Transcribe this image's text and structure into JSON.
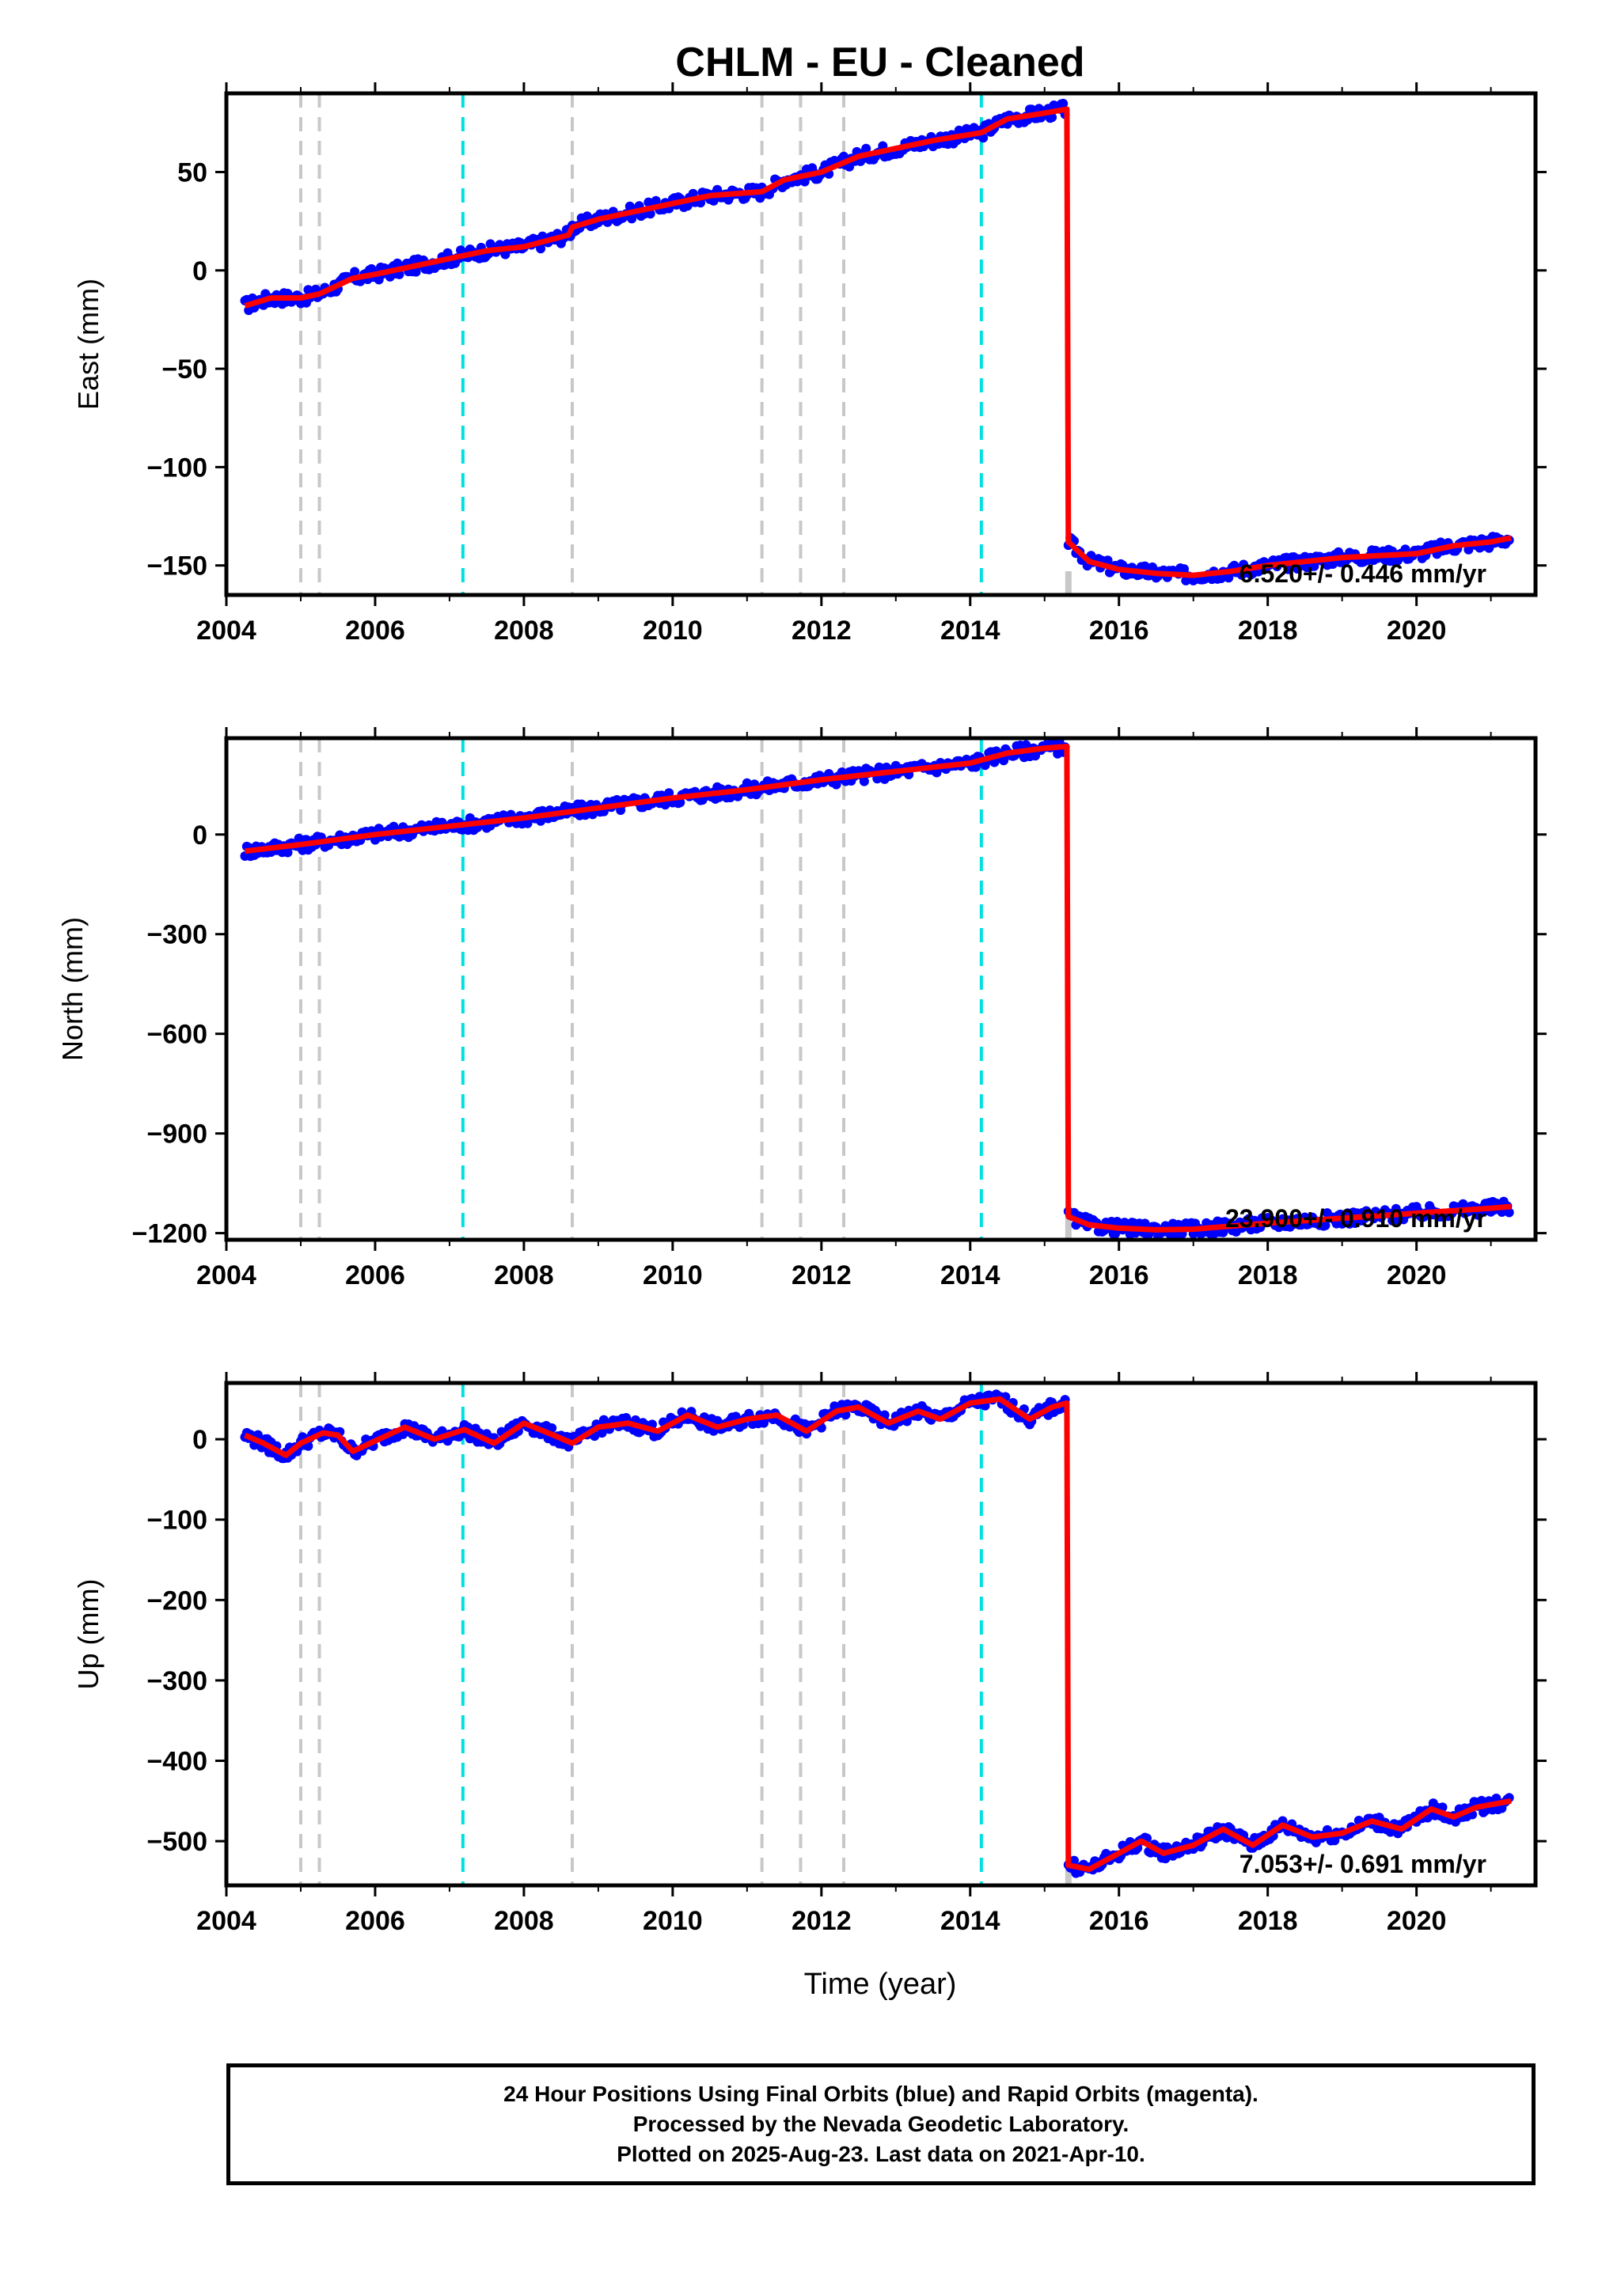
{
  "chart_data": {
    "type": "scatter",
    "title": "CHLM  - EU - Cleaned",
    "xlabel": "Time (year)",
    "xlim": [
      2004.0,
      2021.6
    ],
    "x_ticks": [
      2004,
      2006,
      2008,
      2010,
      2012,
      2014,
      2016,
      2018,
      2020
    ],
    "x_tick_labels": [
      "2004",
      "2006",
      "2008",
      "2010",
      "2012",
      "2014",
      "2016",
      "2018",
      "2020"
    ],
    "equipment_change_dates": [
      2005.0,
      2005.25,
      2008.65,
      2011.2,
      2011.72,
      2012.3
    ],
    "earthquake_dates": [
      2007.18,
      2014.15
    ],
    "offset_date": 2015.32,
    "colors": {
      "data": "#0000ff",
      "model": "#ff0000",
      "equipment": "#c8c8c8",
      "earthquake": "#00e0e0"
    },
    "panels": [
      {
        "ylabel": "East (mm)",
        "ylim": [
          -165,
          90
        ],
        "y_ticks": [
          50,
          0,
          -50,
          -100,
          -150
        ],
        "y_tick_labels": [
          "50",
          "0",
          "−50",
          "−100",
          "−150"
        ],
        "rate_text": "6.520+/- 0.446 mm/yr",
        "series": [
          {
            "name": "",
            "x": [
              2004.25,
              2004.6,
              2005.0,
              2005.25,
              2005.7,
              2006.0,
              2006.5,
              2007.0,
              2007.5,
              2008.0,
              2008.6,
              2008.65,
              2009.0,
              2009.5,
              2010.0,
              2010.5,
              2011.2,
              2011.5,
              2012.0,
              2012.5,
              2013.0,
              2013.5,
              2014.15,
              2014.5,
              2015.0,
              2015.3,
              2015.32,
              2015.6,
              2016.0,
              2016.5,
              2017.0,
              2017.5,
              2018.0,
              2018.5,
              2019.0,
              2019.5,
              2020.0,
              2020.5,
              2021.0,
              2021.27
            ],
            "y": [
              -18,
              -14,
              -14,
              -12,
              -4,
              -2,
              2,
              6,
              10,
              12,
              18,
              22,
              26,
              30,
              34,
              38,
              40,
              46,
              50,
              58,
              62,
              66,
              70,
              77,
              80,
              82,
              -138,
              -148,
              -152,
              -154,
              -155,
              -153,
              -150,
              -148,
              -146,
              -145,
              -144,
              -140,
              -138,
              -136
            ]
          }
        ]
      },
      {
        "ylabel": "North (mm)",
        "ylim": [
          -1220,
          290
        ],
        "y_ticks": [
          0,
          -300,
          -600,
          -900,
          -1200
        ],
        "y_tick_labels": [
          "0",
          "−300",
          "−600",
          "−900",
          "−1200"
        ],
        "rate_text": "23.900+/- 0.910 mm/yr",
        "series": [
          {
            "name": "",
            "x": [
              2004.25,
              2005.0,
              2006.0,
              2007.0,
              2008.0,
              2009.0,
              2010.0,
              2011.0,
              2012.0,
              2013.0,
              2014.0,
              2014.5,
              2015.0,
              2015.3,
              2015.32,
              2015.6,
              2016.0,
              2016.5,
              2017.0,
              2018.0,
              2019.0,
              2020.0,
              2021.0,
              2021.27
            ],
            "y": [
              -50,
              -30,
              0,
              25,
              50,
              80,
              110,
              135,
              165,
              190,
              215,
              245,
              260,
              265,
              -1150,
              -1175,
              -1185,
              -1190,
              -1188,
              -1170,
              -1155,
              -1140,
              -1125,
              -1120
            ]
          }
        ]
      },
      {
        "ylabel": "Up (mm)",
        "ylim": [
          -555,
          70
        ],
        "y_ticks": [
          0,
          -100,
          -200,
          -300,
          -400,
          -500
        ],
        "y_tick_labels": [
          "0",
          "−100",
          "−200",
          "−300",
          "−400",
          "−500"
        ],
        "rate_text": "7.053+/- 0.691 mm/yr",
        "series": [
          {
            "name": "",
            "x": [
              2004.25,
              2004.5,
              2004.8,
              2005.0,
              2005.3,
              2005.5,
              2005.7,
              2006.0,
              2006.4,
              2006.8,
              2007.2,
              2007.6,
              2008.0,
              2008.4,
              2008.65,
              2009.0,
              2009.4,
              2009.8,
              2010.2,
              2010.6,
              2011.0,
              2011.4,
              2011.8,
              2012.2,
              2012.5,
              2012.9,
              2013.3,
              2013.6,
              2014.0,
              2014.4,
              2014.8,
              2015.1,
              2015.3,
              2015.32,
              2015.6,
              2015.9,
              2016.3,
              2016.6,
              2017.0,
              2017.4,
              2017.8,
              2018.2,
              2018.6,
              2019.0,
              2019.4,
              2019.8,
              2020.2,
              2020.5,
              2020.8,
              2021.27
            ],
            "y": [
              5,
              -5,
              -20,
              -5,
              8,
              5,
              -15,
              -2,
              15,
              0,
              12,
              -5,
              20,
              5,
              -5,
              15,
              20,
              10,
              30,
              15,
              25,
              30,
              10,
              35,
              40,
              20,
              35,
              25,
              45,
              50,
              25,
              40,
              45,
              -530,
              -535,
              -520,
              -500,
              -515,
              -505,
              -485,
              -505,
              -480,
              -495,
              -490,
              -475,
              -485,
              -460,
              -470,
              -458,
              -450
            ]
          }
        ]
      }
    ]
  },
  "footer": {
    "line1": "24 Hour Positions Using Final Orbits (blue) and Rapid Orbits (magenta).",
    "line2": "Processed by the Nevada Geodetic Laboratory.",
    "line3": "Plotted on 2025-Aug-23. Last data on 2021-Apr-10."
  }
}
